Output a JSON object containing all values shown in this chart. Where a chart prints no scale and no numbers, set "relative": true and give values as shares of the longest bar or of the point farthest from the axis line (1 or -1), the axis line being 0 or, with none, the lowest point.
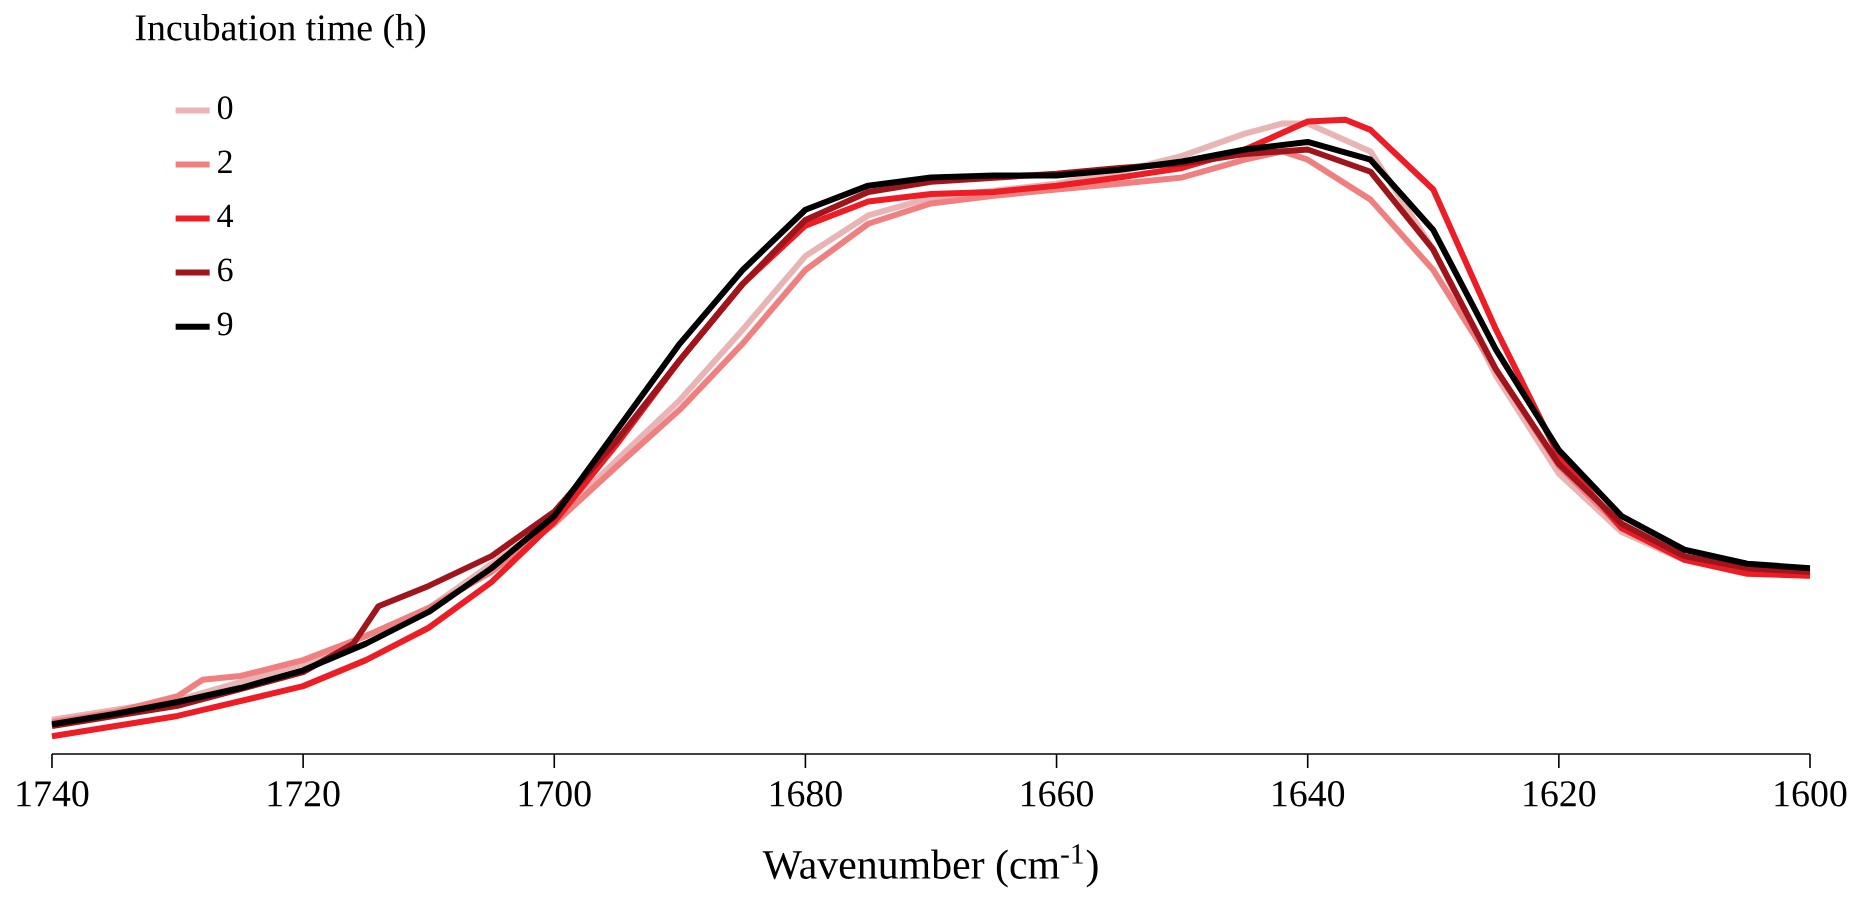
{
  "chart_data": {
    "type": "line",
    "relative": true,
    "xlabel": "Wavenumber (cm$^{-1}$)",
    "legend_title": "Incubation time (h)",
    "legend": "top left",
    "xlim": [
      1740,
      1600
    ],
    "xticks": [
      1740,
      1720,
      1700,
      1680,
      1660,
      1640,
      1620,
      1600
    ],
    "grid": false,
    "marker": "none",
    "line_style": "solid",
    "series": [
      {
        "name": "0",
        "color": "#e8b4b4",
        "x": [
          1740,
          1730,
          1720,
          1710,
          1700,
          1695,
          1690,
          1685,
          1680,
          1675,
          1670,
          1660,
          1655,
          1650,
          1645,
          1642,
          1640,
          1635,
          1630,
          1625,
          1620,
          1615,
          1610,
          1605,
          1600
        ],
        "values": [
          0.054,
          0.085,
          0.142,
          0.23,
          0.369,
          0.464,
          0.558,
          0.669,
          0.785,
          0.849,
          0.877,
          0.899,
          0.918,
          0.943,
          0.978,
          0.994,
          0.994,
          0.95,
          0.795,
          0.596,
          0.442,
          0.35,
          0.306,
          0.287,
          0.284
        ]
      },
      {
        "name": "2",
        "color": "#f08080",
        "x": [
          1740,
          1735,
          1730,
          1728,
          1725,
          1720,
          1715,
          1710,
          1705,
          1700,
          1695,
          1690,
          1685,
          1680,
          1675,
          1670,
          1665,
          1660,
          1655,
          1650,
          1645,
          1642,
          1640,
          1635,
          1630,
          1625,
          1620,
          1615,
          1610,
          1605,
          1600
        ],
        "values": [
          0.05,
          0.066,
          0.091,
          0.117,
          0.123,
          0.148,
          0.186,
          0.23,
          0.287,
          0.363,
          0.454,
          0.543,
          0.647,
          0.763,
          0.836,
          0.868,
          0.88,
          0.89,
          0.899,
          0.909,
          0.937,
          0.95,
          0.937,
          0.874,
          0.763,
          0.606,
          0.454,
          0.356,
          0.309,
          0.287,
          0.281
        ]
      },
      {
        "name": "4",
        "color": "#ee1c25",
        "x": [
          1740,
          1730,
          1720,
          1715,
          1710,
          1705,
          1700,
          1695,
          1690,
          1685,
          1680,
          1675,
          1670,
          1665,
          1660,
          1655,
          1650,
          1645,
          1640,
          1637,
          1635,
          1630,
          1625,
          1620,
          1615,
          1610,
          1605,
          1600
        ],
        "values": [
          0.028,
          0.06,
          0.107,
          0.148,
          0.199,
          0.271,
          0.366,
          0.489,
          0.621,
          0.741,
          0.833,
          0.871,
          0.883,
          0.886,
          0.896,
          0.909,
          0.924,
          0.953,
          0.997,
          1.0,
          0.984,
          0.89,
          0.669,
          0.47,
          0.356,
          0.306,
          0.284,
          0.281
        ]
      },
      {
        "name": "6",
        "color": "#a0141c",
        "x": [
          1740,
          1730,
          1720,
          1716,
          1714,
          1710,
          1705,
          1700,
          1695,
          1690,
          1685,
          1680,
          1675,
          1670,
          1660,
          1655,
          1650,
          1645,
          1640,
          1635,
          1630,
          1625,
          1620,
          1615,
          1610,
          1605,
          1600
        ],
        "values": [
          0.044,
          0.076,
          0.129,
          0.174,
          0.233,
          0.265,
          0.312,
          0.382,
          0.495,
          0.621,
          0.741,
          0.842,
          0.886,
          0.902,
          0.915,
          0.924,
          0.931,
          0.946,
          0.953,
          0.918,
          0.795,
          0.606,
          0.457,
          0.363,
          0.312,
          0.293,
          0.287
        ]
      },
      {
        "name": "9",
        "color": "#000000",
        "x": [
          1740,
          1735,
          1730,
          1725,
          1720,
          1715,
          1710,
          1705,
          1700,
          1695,
          1690,
          1685,
          1680,
          1675,
          1670,
          1665,
          1660,
          1655,
          1650,
          1645,
          1640,
          1635,
          1630,
          1625,
          1620,
          1615,
          1610,
          1605,
          1600
        ],
        "values": [
          0.047,
          0.063,
          0.082,
          0.104,
          0.132,
          0.174,
          0.224,
          0.293,
          0.375,
          0.511,
          0.647,
          0.763,
          0.858,
          0.896,
          0.909,
          0.912,
          0.912,
          0.921,
          0.934,
          0.953,
          0.965,
          0.937,
          0.826,
          0.637,
          0.479,
          0.375,
          0.322,
          0.3,
          0.293
        ]
      }
    ]
  }
}
